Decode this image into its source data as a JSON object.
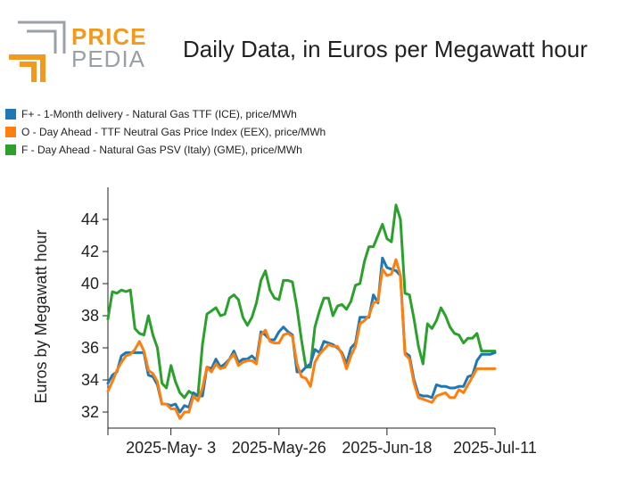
{
  "logo": {
    "line1": "PRICE",
    "line2": "PEDIA",
    "brand_color": "#f29a1f",
    "grey_color": "#9aa0a6"
  },
  "chart_data": {
    "type": "line",
    "title": "Daily Data, in Euros per Megawatt hour",
    "xlabel": "",
    "ylabel": "Euros by Megawatt hour",
    "ylim": [
      31,
      46
    ],
    "yticks": [
      32,
      34,
      36,
      38,
      40,
      42,
      44
    ],
    "x_tick_labels": [
      "2025-May- 3",
      "2025-May-26",
      "2025-Jun-18",
      "2025-Jul-11"
    ],
    "x_tick_index": [
      14,
      38,
      62,
      86
    ],
    "grid": false,
    "legend_position": "top-left",
    "series": [
      {
        "name": "F+ - 1-Month delivery - Natural Gas TTF (ICE), price/MWh",
        "color": "#1f77b4",
        "values": [
          33.8,
          34.3,
          34.5,
          35.5,
          35.7,
          35.7,
          35.7,
          35.7,
          35.7,
          34.3,
          34.2,
          33.7,
          32.5,
          32.5,
          32.4,
          32.5,
          32.0,
          32.4,
          32.3,
          33.2,
          33.0,
          33.0,
          34.8,
          34.7,
          35.3,
          34.8,
          35.0,
          35.3,
          35.8,
          35.1,
          35.3,
          35.3,
          35.5,
          35.2,
          37.0,
          36.8,
          36.5,
          36.5,
          37.0,
          37.3,
          37.0,
          36.8,
          34.5,
          34.5,
          34.8,
          35.0,
          35.9,
          35.7,
          36.4,
          36.3,
          36.2,
          36.0,
          35.7,
          35.0,
          36.0,
          36.3,
          37.9,
          37.9,
          37.9,
          39.3,
          38.8,
          41.6,
          41.0,
          40.9,
          40.8,
          40.5,
          35.7,
          35.5,
          34.0,
          33.1,
          33.0,
          33.0,
          32.9,
          33.7,
          33.6,
          33.6,
          33.5,
          33.5,
          33.6,
          33.6,
          34.2,
          34.3,
          35.2,
          35.6,
          35.6,
          35.6,
          35.7
        ]
      },
      {
        "name": "O - Day Ahead - TTF Neutral Gas Price Index (EEX), price/MWh",
        "color": "#ff7f0e",
        "values": [
          33.3,
          33.9,
          34.6,
          35.1,
          35.5,
          35.6,
          35.9,
          36.4,
          35.8,
          34.6,
          34.4,
          33.9,
          32.5,
          32.5,
          32.2,
          32.2,
          31.6,
          32.0,
          32.0,
          33.0,
          32.7,
          33.5,
          34.8,
          34.5,
          35.0,
          34.7,
          34.8,
          35.3,
          35.6,
          34.9,
          35.1,
          35.2,
          35.2,
          35.0,
          36.8,
          37.1,
          36.4,
          36.3,
          36.3,
          36.8,
          36.9,
          36.7,
          35.0,
          34.2,
          34.1,
          33.6,
          35.1,
          35.6,
          35.9,
          36.2,
          36.1,
          36.1,
          35.6,
          34.7,
          35.5,
          36.1,
          37.5,
          37.7,
          38.0,
          38.8,
          38.9,
          40.9,
          40.5,
          40.6,
          41.5,
          40.5,
          35.6,
          35.3,
          33.8,
          32.9,
          32.8,
          32.7,
          32.6,
          33.0,
          33.1,
          33.2,
          32.9,
          32.9,
          33.4,
          33.2,
          33.7,
          34.2,
          34.7,
          34.7,
          34.7,
          34.7,
          34.7
        ]
      },
      {
        "name": "F - Day Ahead - Natural Gas PSV (Italy) (GME), price/MWh",
        "color": "#2ca02c",
        "values": [
          37.8,
          39.5,
          39.4,
          39.6,
          39.5,
          39.6,
          37.2,
          36.9,
          36.8,
          38.0,
          36.8,
          36.0,
          33.8,
          33.5,
          34.9,
          33.9,
          33.2,
          32.9,
          33.3,
          33.1,
          33.0,
          36.2,
          38.1,
          38.3,
          38.5,
          38.0,
          38.1,
          39.1,
          39.3,
          39.0,
          37.9,
          37.4,
          37.9,
          38.8,
          40.2,
          40.8,
          39.6,
          39.1,
          39.0,
          40.2,
          40.2,
          40.1,
          38.5,
          36.5,
          34.8,
          34.8,
          37.3,
          38.3,
          39.1,
          39.1,
          38.0,
          38.6,
          38.7,
          38.4,
          38.9,
          39.9,
          40.0,
          41.4,
          42.3,
          42.3,
          43.0,
          43.7,
          42.8,
          42.6,
          44.9,
          44.0,
          39.4,
          39.3,
          37.8,
          36.1,
          35.0,
          37.5,
          37.2,
          37.7,
          38.5,
          38.0,
          37.3,
          36.9,
          36.8,
          36.3,
          36.6,
          36.6,
          36.9,
          35.8,
          35.8,
          35.8,
          35.8
        ]
      }
    ]
  }
}
